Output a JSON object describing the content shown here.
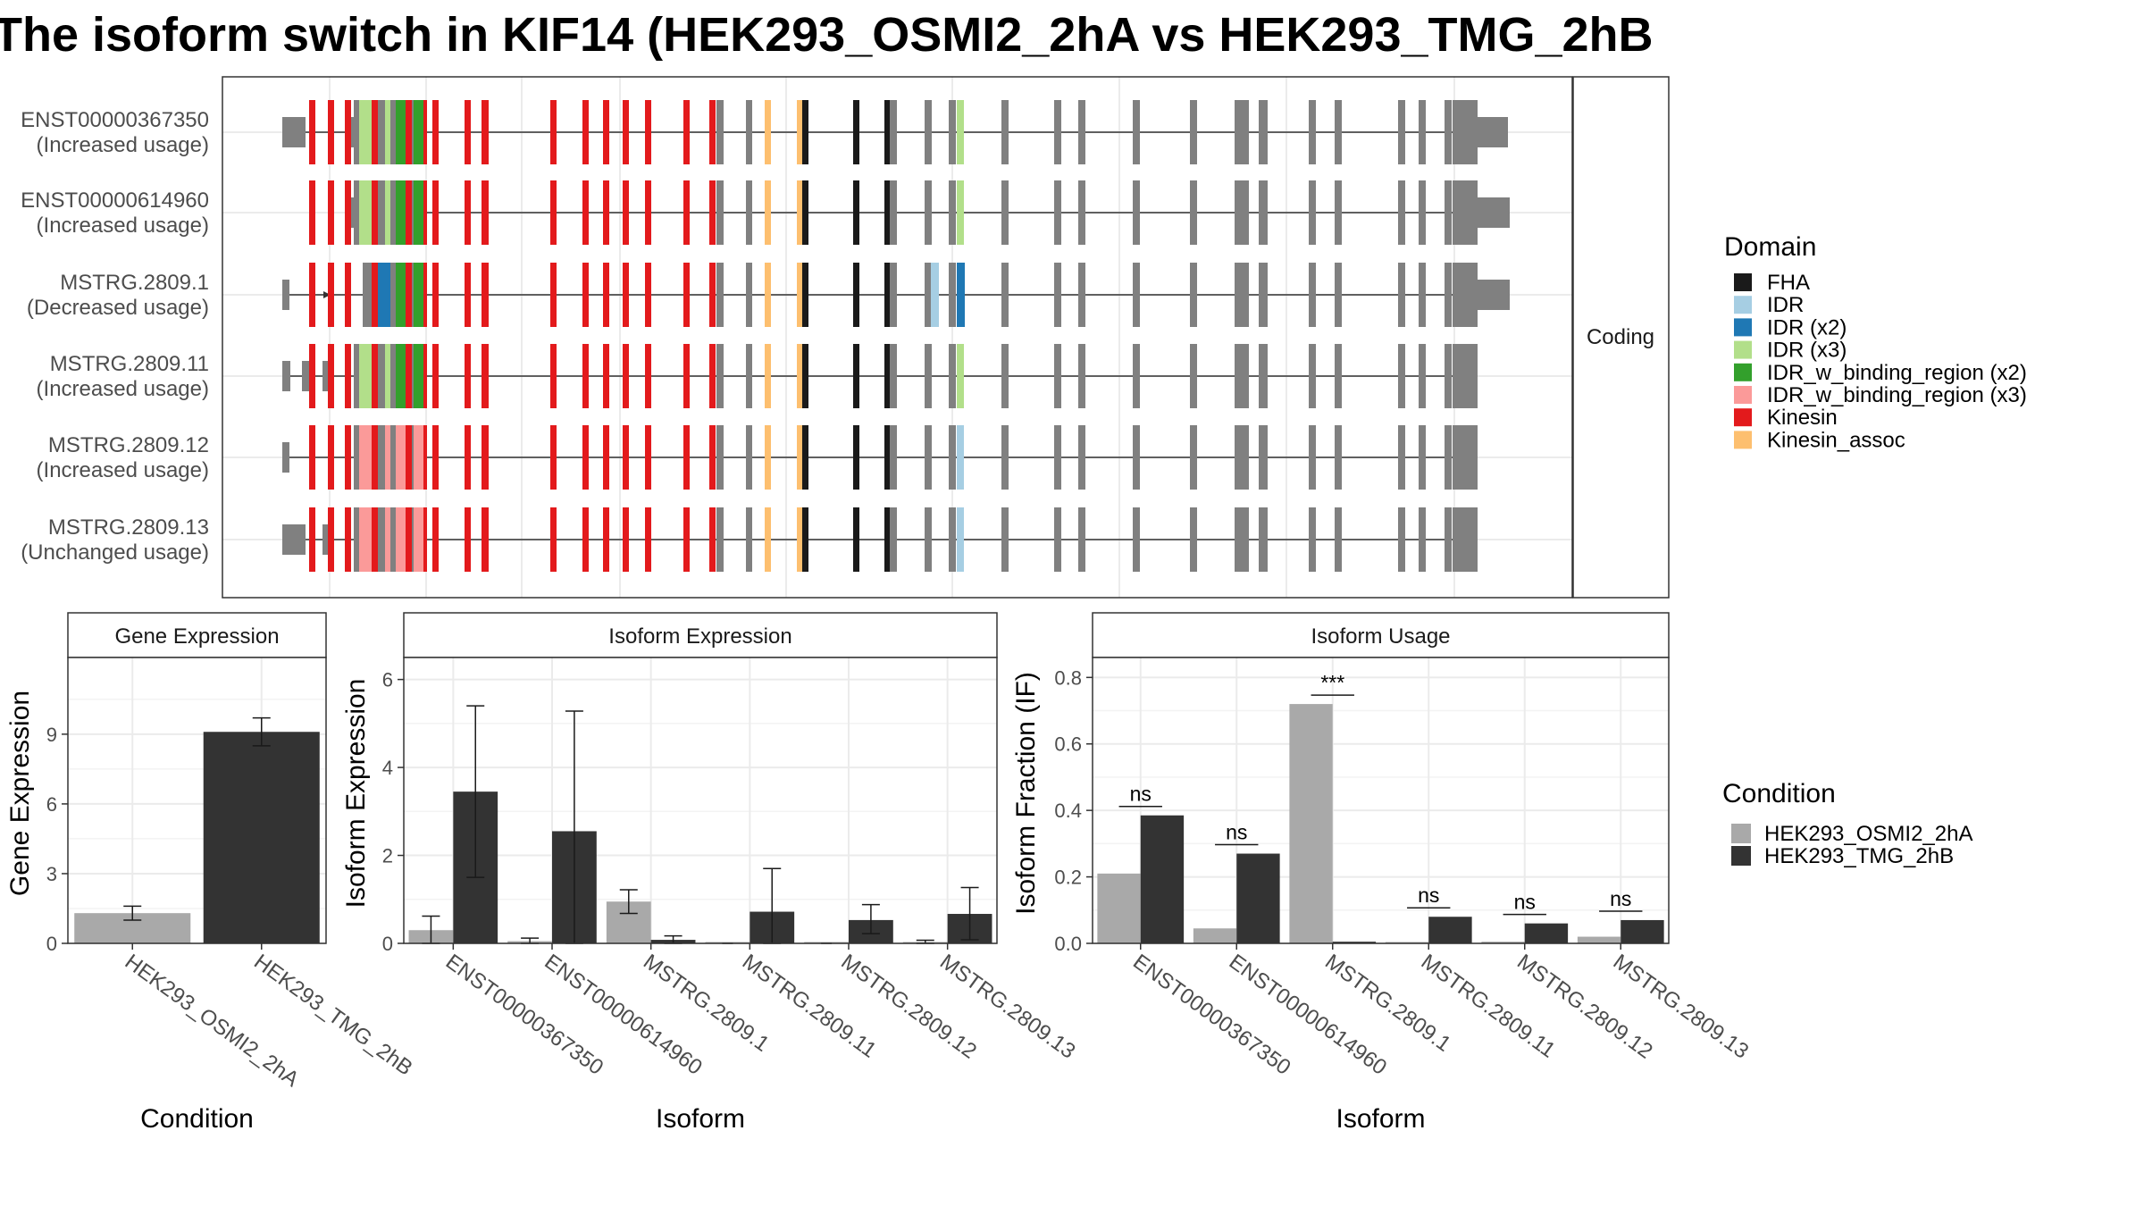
{
  "title": "The isoform switch in KIF14 (HEK293_OSMI2_2hA vs HEK293_TMG_2hB",
  "colors": {
    "FHA": "#1a1a1a",
    "IDR": "#a6cee3",
    "IDR (x2)": "#1f78b4",
    "IDR (x3)": "#b2df8a",
    "IDR_w_binding_region (x2)": "#33a02c",
    "IDR_w_binding_region (x3)": "#fb9a99",
    "Kinesin": "#e31a1c",
    "Kinesin_assoc": "#fdbf6f",
    "exon": "#808080",
    "cond_a": "#a9a9a9",
    "cond_b": "#333333"
  },
  "structure": {
    "facet_label": "Coding",
    "transcripts": [
      {
        "id": "ENST00000367350",
        "usage": "(Increased usage)",
        "scheme": "green"
      },
      {
        "id": "ENST00000614960",
        "usage": "(Increased usage)",
        "scheme": "green"
      },
      {
        "id": "MSTRG.2809.1",
        "usage": "(Decreased usage)",
        "scheme": "blue"
      },
      {
        "id": "MSTRG.2809.11",
        "usage": "(Increased usage)",
        "scheme": "green"
      },
      {
        "id": "MSTRG.2809.12",
        "usage": "(Increased usage)",
        "scheme": "pink"
      },
      {
        "id": "MSTRG.2809.13",
        "usage": "(Unchanged usage)",
        "scheme": "pink"
      }
    ]
  },
  "legend_domain": {
    "title": "Domain",
    "items": [
      {
        "label": "FHA",
        "color": "#1a1a1a"
      },
      {
        "label": "IDR",
        "color": "#a6cee3"
      },
      {
        "label": "IDR (x2)",
        "color": "#1f78b4"
      },
      {
        "label": "IDR (x3)",
        "color": "#b2df8a"
      },
      {
        "label": "IDR_w_binding_region (x2)",
        "color": "#33a02c"
      },
      {
        "label": "IDR_w_binding_region (x3)",
        "color": "#fb9a99"
      },
      {
        "label": "Kinesin",
        "color": "#e31a1c"
      },
      {
        "label": "Kinesin_assoc",
        "color": "#fdbf6f"
      }
    ]
  },
  "legend_condition": {
    "title": "Condition",
    "items": [
      {
        "label": "HEK293_OSMI2_2hA",
        "color": "#a9a9a9"
      },
      {
        "label": "HEK293_TMG_2hB",
        "color": "#333333"
      }
    ]
  },
  "chart_data": [
    {
      "type": "bar",
      "title": "Gene Expression",
      "xlabel": "Condition",
      "ylabel": "Gene Expression",
      "ylim": [
        0,
        12.3
      ],
      "yticks": [
        0,
        3,
        6,
        9
      ],
      "categories": [
        "HEK293_OSMI2_2hA",
        "HEK293_TMG_2hB"
      ],
      "values": [
        1.3,
        9.1
      ],
      "errors": [
        [
          1.0,
          1.6
        ],
        [
          8.5,
          9.7
        ]
      ]
    },
    {
      "type": "bar",
      "title": "Isoform Expression",
      "xlabel": "Isoform",
      "ylabel": "Isoform Expression",
      "ylim": [
        0,
        6.5
      ],
      "yticks": [
        0,
        2,
        4,
        6
      ],
      "categories": [
        "ENST00000367350",
        "ENST00000614960",
        "MSTRG.2809.1",
        "MSTRG.2809.11",
        "MSTRG.2809.12",
        "MSTRG.2809.13"
      ],
      "series": [
        {
          "name": "HEK293_OSMI2_2hA",
          "values": [
            0.3,
            0.05,
            0.95,
            0.0,
            0.0,
            0.03
          ],
          "errors": [
            [
              0.0,
              0.62
            ],
            [
              0.0,
              0.12
            ],
            [
              0.68,
              1.22
            ],
            [
              0.0,
              0.0
            ],
            [
              0.0,
              0.0
            ],
            [
              0.0,
              0.07
            ]
          ]
        },
        {
          "name": "HEK293_TMG_2hB",
          "values": [
            3.45,
            2.55,
            0.08,
            0.72,
            0.53,
            0.67
          ],
          "errors": [
            [
              1.5,
              5.4
            ],
            [
              0.0,
              5.28
            ],
            [
              0.0,
              0.17
            ],
            [
              0.0,
              1.7
            ],
            [
              0.22,
              0.88
            ],
            [
              0.08,
              1.27
            ]
          ]
        }
      ]
    },
    {
      "type": "bar",
      "title": "Isoform Usage",
      "xlabel": "Isoform",
      "ylabel": "Isoform Fraction (IF)",
      "ylim": [
        0,
        0.86
      ],
      "yticks": [
        0.0,
        0.2,
        0.4,
        0.6,
        0.8
      ],
      "categories": [
        "ENST00000367350",
        "ENST00000614960",
        "MSTRG.2809.1",
        "MSTRG.2809.11",
        "MSTRG.2809.12",
        "MSTRG.2809.13"
      ],
      "series": [
        {
          "name": "HEK293_OSMI2_2hA",
          "values": [
            0.21,
            0.045,
            0.72,
            0.0,
            0.005,
            0.02
          ]
        },
        {
          "name": "HEK293_TMG_2hB",
          "values": [
            0.385,
            0.27,
            0.005,
            0.08,
            0.06,
            0.07
          ]
        }
      ],
      "significance": [
        "ns",
        "ns",
        "***",
        "ns",
        "ns",
        "ns"
      ]
    }
  ]
}
